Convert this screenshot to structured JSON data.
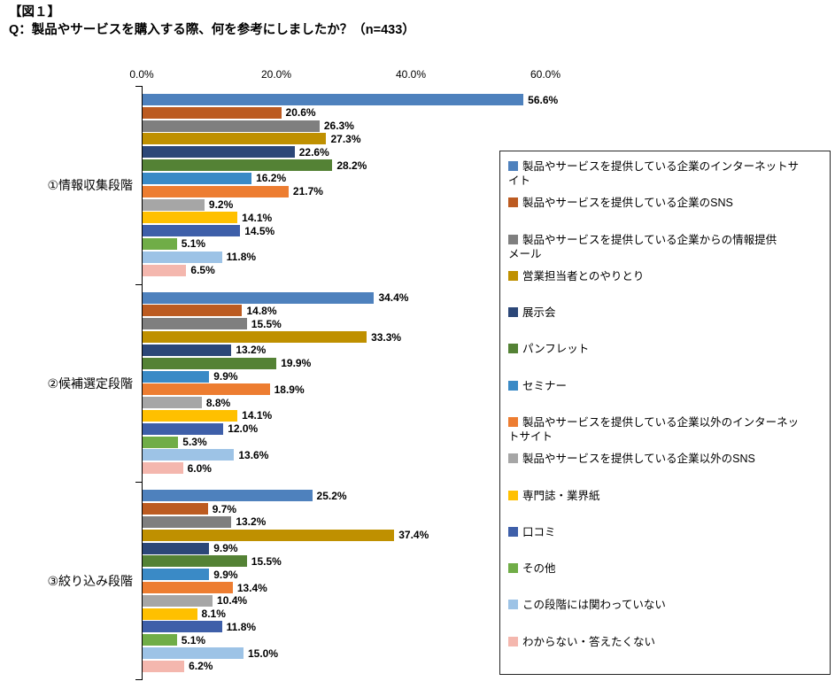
{
  "title": {
    "line1": "【図１】",
    "line2": "Q：製品やサービスを購入する際、何を参考にしましたか？（n=433）"
  },
  "chart_data": {
    "type": "bar",
    "orientation": "horizontal",
    "grid": false,
    "legend_position": "right",
    "value_axis": {
      "ticks": [
        "0.0%",
        "20.0%",
        "40.0%",
        "60.0%"
      ],
      "tick_values": [
        0,
        20,
        40,
        60
      ],
      "max": 60,
      "unit": "%"
    },
    "series": [
      {
        "name": "製品やサービスを提供している企業のインターネットサ\nイト",
        "color": "#4E81BD"
      },
      {
        "name": "製品やサービスを提供している企業のSNS",
        "color": "#BC5B21"
      },
      {
        "name": "製品やサービスを提供している企業からの情報提供\nメール",
        "color": "#7F7F7F"
      },
      {
        "name": "営業担当者とのやりとり",
        "color": "#BF9000"
      },
      {
        "name": "展示会",
        "color": "#2C4778"
      },
      {
        "name": "パンフレット",
        "color": "#548235"
      },
      {
        "name": "セミナー",
        "color": "#3A8AC6"
      },
      {
        "name": "製品やサービスを提供している企業以外のインターネッ\nトサイト",
        "color": "#ED7D31"
      },
      {
        "name": "製品やサービスを提供している企業以外のSNS",
        "color": "#A6A6A6"
      },
      {
        "name": "専門誌・業界紙",
        "color": "#FFC000"
      },
      {
        "name": "口コミ",
        "color": "#3E5FA9"
      },
      {
        "name": "その他",
        "color": "#70AD47"
      },
      {
        "name": "この段階には関わっていない",
        "color": "#9DC3E6"
      },
      {
        "name": "わからない・答えたくない",
        "color": "#F4B7AE"
      }
    ],
    "groups": [
      {
        "label": "①情報収集段階",
        "values": [
          56.6,
          20.6,
          26.3,
          27.3,
          22.6,
          28.2,
          16.2,
          21.7,
          9.2,
          14.1,
          14.5,
          5.1,
          11.8,
          6.5
        ]
      },
      {
        "label": "②候補選定段階",
        "values": [
          34.4,
          14.8,
          15.5,
          33.3,
          13.2,
          19.9,
          9.9,
          18.9,
          8.8,
          14.1,
          12.0,
          5.3,
          13.6,
          6.0
        ]
      },
      {
        "label": "③絞り込み段階",
        "values": [
          25.2,
          9.7,
          13.2,
          37.4,
          9.9,
          15.5,
          9.9,
          13.4,
          10.4,
          8.1,
          11.8,
          5.1,
          15.0,
          6.2
        ]
      }
    ]
  }
}
